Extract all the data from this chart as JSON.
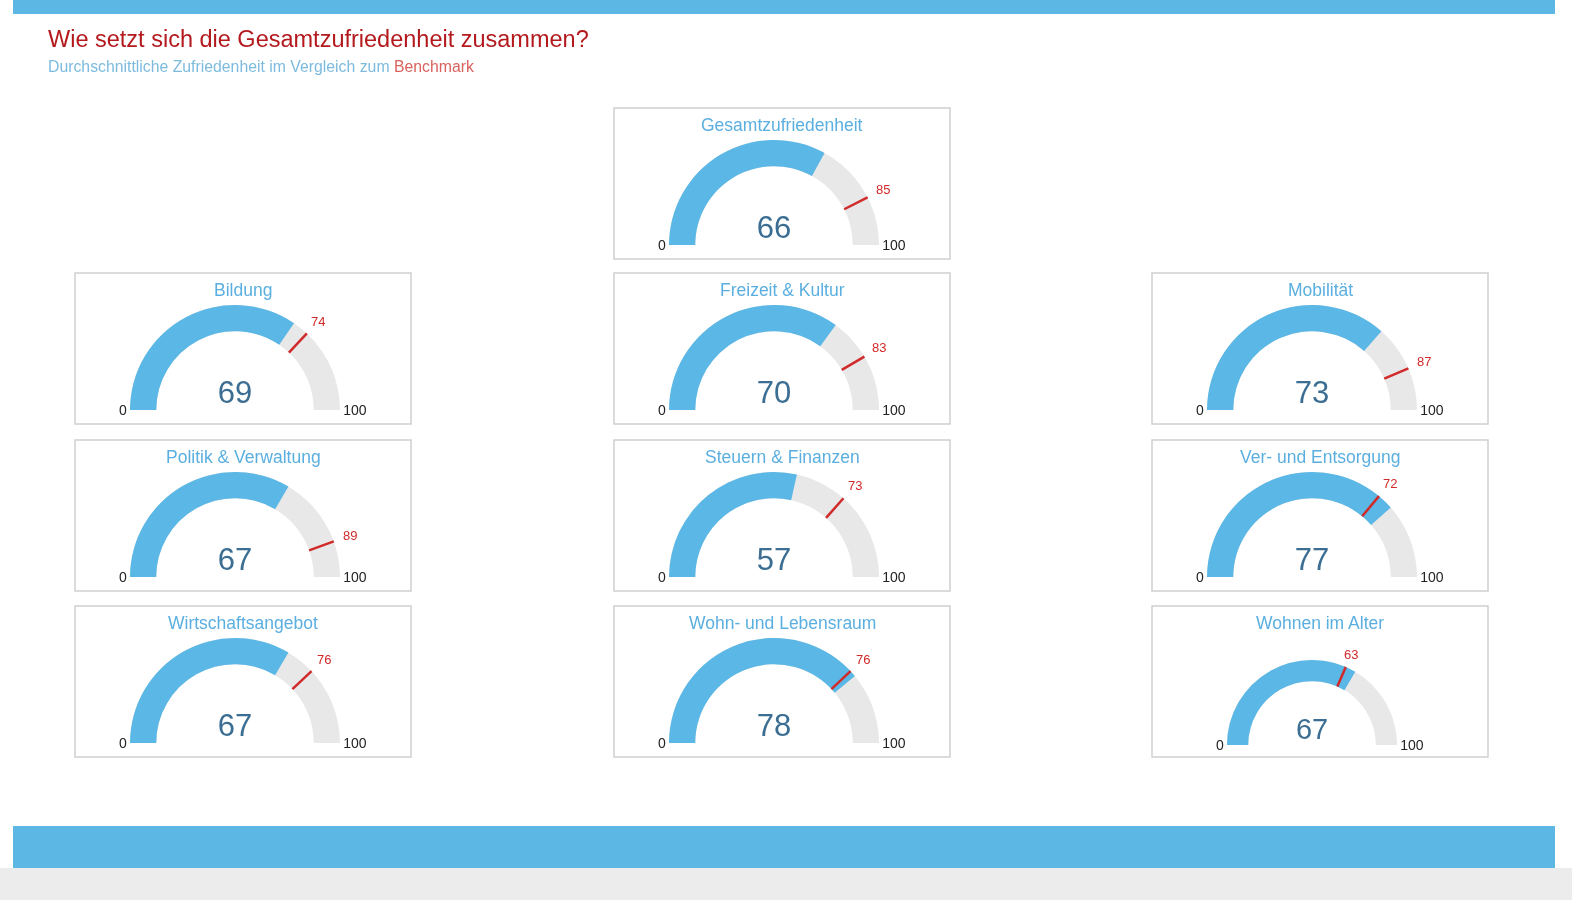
{
  "chart_data": [
    {
      "type": "other",
      "title": "Wie setzt sich die Gesamtzufriedenheit zusammen?",
      "subtitle": "Durchschnittliche Zufriedenheit im Vergleich zum Benchmark"
    },
    {
      "type": "other",
      "title": "Gesamtzufriedenheit",
      "values": [
        66,
        85
      ],
      "colors": [
        "#5bb7e5",
        "#d12a2a"
      ],
      "data_labels": true,
      "annotations": [
        "0",
        "100"
      ]
    },
    {
      "type": "other",
      "title": "Bildung",
      "values": [
        69,
        74
      ],
      "colors": [
        "#5bb7e5",
        "#d12a2a"
      ],
      "data_labels": true,
      "annotations": [
        "0",
        "100"
      ]
    },
    {
      "type": "other",
      "title": "Freizeit & Kultur",
      "values": [
        70,
        83
      ],
      "colors": [
        "#5bb7e5",
        "#d12a2a"
      ],
      "data_labels": true,
      "annotations": [
        "0",
        "100"
      ]
    },
    {
      "type": "other",
      "title": "Mobilität",
      "values": [
        73,
        87
      ],
      "colors": [
        "#5bb7e5",
        "#d12a2a"
      ],
      "data_labels": true,
      "annotations": [
        "0",
        "100"
      ]
    },
    {
      "type": "other",
      "title": "Politik & Verwaltung",
      "values": [
        67,
        89
      ],
      "colors": [
        "#5bb7e5",
        "#d12a2a"
      ],
      "data_labels": true,
      "annotations": [
        "0",
        "100"
      ]
    },
    {
      "type": "other",
      "title": "Steuern & Finanzen",
      "values": [
        57,
        73
      ],
      "colors": [
        "#5bb7e5",
        "#d12a2a"
      ],
      "data_labels": true,
      "annotations": [
        "0",
        "100"
      ]
    },
    {
      "type": "other",
      "title": "Ver- und Entsorgung",
      "values": [
        77,
        72
      ],
      "colors": [
        "#5bb7e5",
        "#d12a2a"
      ],
      "data_labels": true,
      "annotations": [
        "0",
        "100"
      ]
    },
    {
      "type": "other",
      "title": "Wirtschaftsangebot",
      "values": [
        67,
        76
      ],
      "colors": [
        "#5bb7e5",
        "#d12a2a"
      ],
      "data_labels": true,
      "annotations": [
        "0",
        "100"
      ]
    },
    {
      "type": "other",
      "title": "Wohn- und Lebensraum",
      "values": [
        78,
        76
      ],
      "colors": [
        "#5bb7e5",
        "#d12a2a"
      ],
      "data_labels": true,
      "annotations": [
        "0",
        "100"
      ]
    },
    {
      "type": "other",
      "title": "Wohnen im Alter",
      "values": [
        67,
        63
      ],
      "colors": [
        "#5bb7e5",
        "#d12a2a"
      ],
      "data_labels": true,
      "annotations": [
        "0",
        "100"
      ]
    }
  ]
}
